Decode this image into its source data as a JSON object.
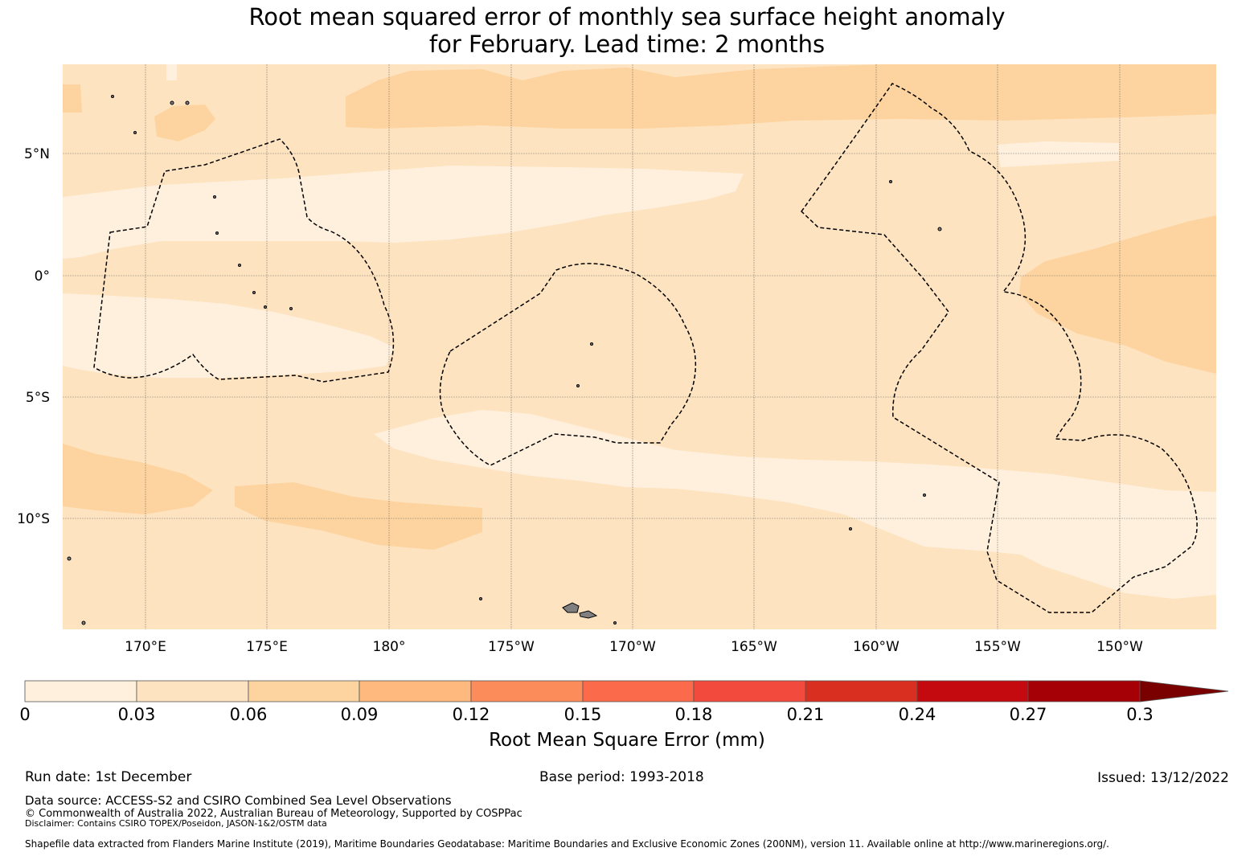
{
  "title": {
    "line1": "Root mean squared error of monthly sea surface height anomaly",
    "line2": "for February. Lead time: 2 months"
  },
  "map": {
    "lat_labels": [
      "5°N",
      "0°",
      "5°S",
      "10°S"
    ],
    "lon_labels": [
      "170°E",
      "175°E",
      "180°",
      "175°W",
      "170°W",
      "165°W",
      "160°W",
      "155°W",
      "150°W"
    ],
    "colors": {
      "c1": "#fff0dd",
      "c2": "#fee3c1",
      "c3": "#fdd49f",
      "land": "#808080",
      "eez_line": "#000000",
      "grid": "#555555"
    }
  },
  "colorbar": {
    "title": "Root Mean Square Error (mm)",
    "tick_labels": [
      "0",
      "0.03",
      "0.06",
      "0.09",
      "0.12",
      "0.15",
      "0.18",
      "0.21",
      "0.24",
      "0.27",
      "0.3"
    ],
    "colors": [
      "#fff0dd",
      "#fee3c1",
      "#fdd49f",
      "#fdb97e",
      "#fc8c59",
      "#fb6a4a",
      "#f24a3d",
      "#d92f21",
      "#c40a0e",
      "#a50006",
      "#7a0000"
    ]
  },
  "footer": {
    "run_date": "Run date: 1st December",
    "base_period": "Base period: 1993-2018",
    "issued": "Issued: 13/12/2022",
    "data_source": "Data source: ACCESS-S2 and CSIRO Combined Sea Level Observations",
    "copyright": "© Commonwealth of Australia 2022, Australian Bureau of Meteorology, Supported by COSPPac",
    "disclaimer": "Disclaimer: Contains CSIRO TOPEX/Poseidon, JASON-1&2/OSTM data",
    "shapefile": "Shapefile data extracted from Flanders Marine Institute (2019), Maritime Boundaries Geodatabase: Maritime Boundaries and Exclusive Economic Zones (200NM), version 11. Available online at http://www.marineregions.org/."
  }
}
